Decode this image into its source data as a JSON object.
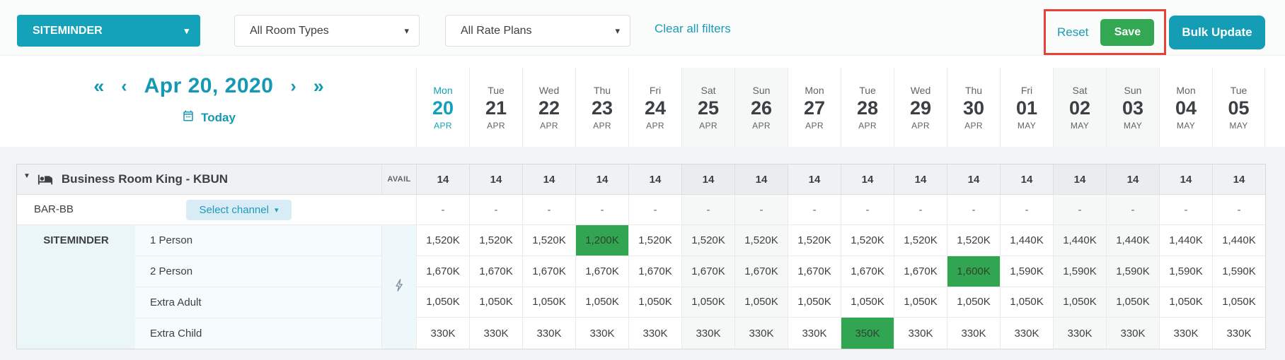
{
  "colors": {
    "teal": "#149db5",
    "teal_text": "#1599b3",
    "green": "#32a852",
    "green_cell": "#32a552",
    "red_annotation": "#e8413c",
    "text_dark": "#3c4043",
    "text_gray": "#5f6368"
  },
  "icons": {
    "caret_down": "▾",
    "collapse_triangle": "▼",
    "first_page": "«",
    "prev": "‹",
    "next": "›",
    "last_page": "»"
  },
  "topbar": {
    "channel_dropdown": "SITEMINDER",
    "room_types_dropdown": "All Room Types",
    "rate_plans_dropdown": "All Rate Plans",
    "clear_filters": "Clear all filters",
    "reset": "Reset",
    "save": "Save",
    "bulk_update": "Bulk Update"
  },
  "datenav": {
    "date": "Apr 20, 2020",
    "today": "Today"
  },
  "calendar": {
    "days": [
      {
        "dow": "Mon",
        "num": "20",
        "month": "APR",
        "today": true,
        "weekend": false
      },
      {
        "dow": "Tue",
        "num": "21",
        "month": "APR",
        "today": false,
        "weekend": false
      },
      {
        "dow": "Wed",
        "num": "22",
        "month": "APR",
        "today": false,
        "weekend": false
      },
      {
        "dow": "Thu",
        "num": "23",
        "month": "APR",
        "today": false,
        "weekend": false
      },
      {
        "dow": "Fri",
        "num": "24",
        "month": "APR",
        "today": false,
        "weekend": false
      },
      {
        "dow": "Sat",
        "num": "25",
        "month": "APR",
        "today": false,
        "weekend": true
      },
      {
        "dow": "Sun",
        "num": "26",
        "month": "APR",
        "today": false,
        "weekend": true
      },
      {
        "dow": "Mon",
        "num": "27",
        "month": "APR",
        "today": false,
        "weekend": false
      },
      {
        "dow": "Tue",
        "num": "28",
        "month": "APR",
        "today": false,
        "weekend": false
      },
      {
        "dow": "Wed",
        "num": "29",
        "month": "APR",
        "today": false,
        "weekend": false
      },
      {
        "dow": "Thu",
        "num": "30",
        "month": "APR",
        "today": false,
        "weekend": false
      },
      {
        "dow": "Fri",
        "num": "01",
        "month": "MAY",
        "today": false,
        "weekend": false
      },
      {
        "dow": "Sat",
        "num": "02",
        "month": "MAY",
        "today": false,
        "weekend": true
      },
      {
        "dow": "Sun",
        "num": "03",
        "month": "MAY",
        "today": false,
        "weekend": true
      },
      {
        "dow": "Mon",
        "num": "04",
        "month": "MAY",
        "today": false,
        "weekend": false
      },
      {
        "dow": "Tue",
        "num": "05",
        "month": "MAY",
        "today": false,
        "weekend": false
      }
    ]
  },
  "table": {
    "room": {
      "name": "Business Room King - KBUN",
      "avail_label": "AVAIL",
      "availability": [
        "14",
        "14",
        "14",
        "14",
        "14",
        "14",
        "14",
        "14",
        "14",
        "14",
        "14",
        "14",
        "14",
        "14",
        "14",
        "14"
      ]
    },
    "rate_plan": {
      "name": "BAR-BB",
      "select_channel": "Select channel",
      "values": [
        "-",
        "-",
        "-",
        "-",
        "-",
        "-",
        "-",
        "-",
        "-",
        "-",
        "-",
        "-",
        "-",
        "-",
        "-",
        "-"
      ]
    },
    "channel": {
      "name": "SITEMINDER",
      "rows": [
        {
          "label": "1 Person",
          "highlight": 3,
          "values": [
            "1,520K",
            "1,520K",
            "1,520K",
            "1,200K",
            "1,520K",
            "1,520K",
            "1,520K",
            "1,520K",
            "1,520K",
            "1,520K",
            "1,520K",
            "1,440K",
            "1,440K",
            "1,440K",
            "1,440K",
            "1,440K"
          ]
        },
        {
          "label": "2 Person",
          "highlight": 10,
          "values": [
            "1,670K",
            "1,670K",
            "1,670K",
            "1,670K",
            "1,670K",
            "1,670K",
            "1,670K",
            "1,670K",
            "1,670K",
            "1,670K",
            "1,600K",
            "1,590K",
            "1,590K",
            "1,590K",
            "1,590K",
            "1,590K"
          ]
        },
        {
          "label": "Extra Adult",
          "highlight": -1,
          "values": [
            "1,050K",
            "1,050K",
            "1,050K",
            "1,050K",
            "1,050K",
            "1,050K",
            "1,050K",
            "1,050K",
            "1,050K",
            "1,050K",
            "1,050K",
            "1,050K",
            "1,050K",
            "1,050K",
            "1,050K",
            "1,050K"
          ]
        },
        {
          "label": "Extra Child",
          "highlight": 8,
          "values": [
            "330K",
            "330K",
            "330K",
            "330K",
            "330K",
            "330K",
            "330K",
            "330K",
            "350K",
            "330K",
            "330K",
            "330K",
            "330K",
            "330K",
            "330K",
            "330K"
          ]
        }
      ]
    }
  }
}
